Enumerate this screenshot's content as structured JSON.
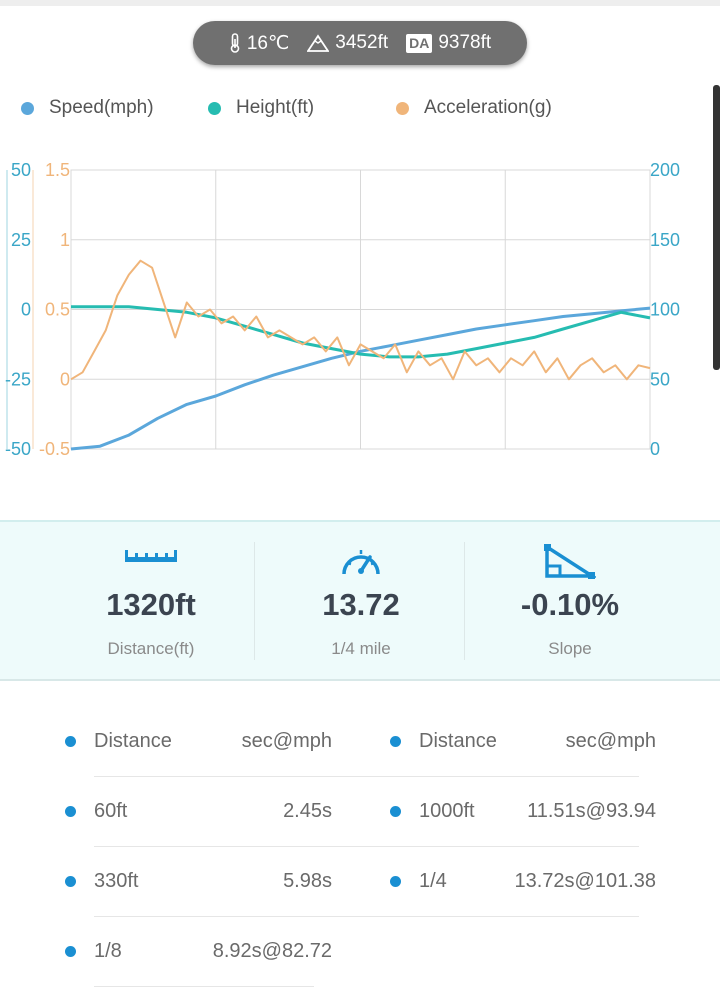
{
  "conditions": {
    "temperature": "16℃",
    "altitude": "3452ft",
    "da_label": "DA",
    "density_altitude": "9378ft"
  },
  "legend": [
    {
      "name": "Speed(mph)",
      "color": "#5ba7db"
    },
    {
      "name": "Height(ft)",
      "color": "#26bcb1"
    },
    {
      "name": "Acceleration(g)",
      "color": "#f0b57a"
    }
  ],
  "chart_data": {
    "type": "line",
    "axes": {
      "left_outer": {
        "ticks": [
          "50",
          "25",
          "0",
          "-25",
          "-50"
        ],
        "range": [
          -50,
          50
        ],
        "color": "#3aa6c7"
      },
      "left_inner": {
        "ticks": [
          "1.5",
          "1",
          "0.5",
          "0",
          "-0.5"
        ],
        "range": [
          -0.5,
          1.5
        ],
        "color": "#f0b57a"
      },
      "right": {
        "ticks": [
          "200",
          "150",
          "100",
          "50",
          "0"
        ],
        "range": [
          0,
          200
        ],
        "color": "#3aa6c7"
      }
    },
    "x_range": [
      0,
      1
    ],
    "grid": true,
    "series": [
      {
        "name": "Speed(mph)",
        "axis": "right",
        "color": "#5ba7db",
        "x": [
          0,
          0.05,
          0.1,
          0.15,
          0.2,
          0.25,
          0.3,
          0.35,
          0.4,
          0.45,
          0.5,
          0.55,
          0.6,
          0.65,
          0.7,
          0.75,
          0.8,
          0.85,
          0.9,
          0.95,
          1.0
        ],
        "y": [
          0,
          2,
          10,
          22,
          32,
          38,
          46,
          53,
          59,
          65,
          70,
          74,
          78,
          82,
          86,
          89,
          92,
          95,
          97,
          99,
          101
        ]
      },
      {
        "name": "Height(ft)",
        "axis": "left_outer",
        "color": "#26bcb1",
        "x": [
          0,
          0.05,
          0.1,
          0.15,
          0.2,
          0.25,
          0.3,
          0.35,
          0.4,
          0.45,
          0.5,
          0.55,
          0.6,
          0.65,
          0.7,
          0.75,
          0.8,
          0.85,
          0.9,
          0.95,
          1.0
        ],
        "y": [
          1,
          1,
          1,
          0,
          -1,
          -3,
          -6,
          -9,
          -12,
          -14,
          -16,
          -17,
          -17,
          -16,
          -14,
          -12,
          -10,
          -7,
          -4,
          -1,
          -3
        ]
      },
      {
        "name": "Acceleration(g)",
        "axis": "left_inner",
        "color": "#f0b57a",
        "x": [
          0,
          0.02,
          0.04,
          0.06,
          0.08,
          0.1,
          0.12,
          0.14,
          0.16,
          0.18,
          0.2,
          0.22,
          0.24,
          0.26,
          0.28,
          0.3,
          0.32,
          0.34,
          0.36,
          0.38,
          0.4,
          0.42,
          0.44,
          0.46,
          0.48,
          0.5,
          0.52,
          0.54,
          0.56,
          0.58,
          0.6,
          0.62,
          0.64,
          0.66,
          0.68,
          0.7,
          0.72,
          0.74,
          0.76,
          0.78,
          0.8,
          0.82,
          0.84,
          0.86,
          0.88,
          0.9,
          0.92,
          0.94,
          0.96,
          0.98,
          1.0
        ],
        "y": [
          0.0,
          0.05,
          0.2,
          0.35,
          0.6,
          0.75,
          0.85,
          0.8,
          0.55,
          0.3,
          0.55,
          0.45,
          0.5,
          0.4,
          0.45,
          0.35,
          0.45,
          0.3,
          0.35,
          0.3,
          0.25,
          0.3,
          0.2,
          0.3,
          0.1,
          0.25,
          0.2,
          0.15,
          0.25,
          0.05,
          0.2,
          0.1,
          0.15,
          0.0,
          0.2,
          0.1,
          0.15,
          0.05,
          0.15,
          0.1,
          0.2,
          0.05,
          0.15,
          0.0,
          0.1,
          0.15,
          0.05,
          0.1,
          0.0,
          0.1,
          0.08
        ]
      }
    ]
  },
  "stats": [
    {
      "icon": "ruler-icon",
      "value": "1320ft",
      "label": "Distance(ft)"
    },
    {
      "icon": "speedometer-icon",
      "value": "13.72",
      "label": "1/4 mile"
    },
    {
      "icon": "slope-icon",
      "value": "-0.10%",
      "label": "Slope"
    }
  ],
  "splits": {
    "header": {
      "distance": "Distance",
      "time": "sec@mph"
    },
    "left": [
      {
        "distance": "60ft",
        "time": "2.45s"
      },
      {
        "distance": "330ft",
        "time": "5.98s"
      },
      {
        "distance": "1/8",
        "time": "8.92s@82.72"
      }
    ],
    "right": [
      {
        "distance": "1000ft",
        "time": "11.51s@93.94"
      },
      {
        "distance": "1/4",
        "time": "13.72s@101.38"
      }
    ]
  }
}
